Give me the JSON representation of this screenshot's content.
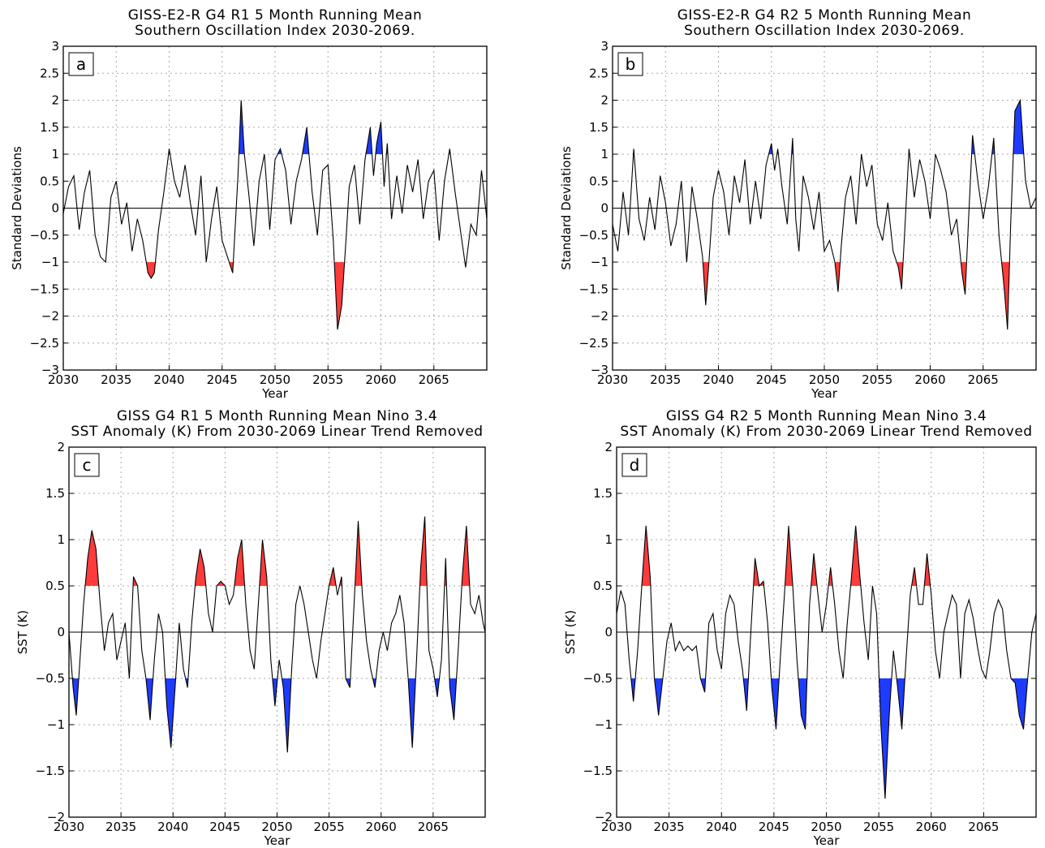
{
  "colors": {
    "positive_fill": "#ff3b3b",
    "negative_fill": "#1e3cff",
    "line": "#000000",
    "grid": "#aaaaaa"
  },
  "chart_data": [
    {
      "type": "area",
      "panel_label": "a",
      "title": [
        "GISS-E2-R G4 R1 5 Month Running Mean",
        "Southern Oscillation Index 2030-2069."
      ],
      "xlabel": "Year",
      "ylabel": "Standard Deviations",
      "xlim": [
        2030,
        2070
      ],
      "ylim": [
        -3,
        3
      ],
      "xticks": [
        2030,
        2035,
        2040,
        2045,
        2050,
        2055,
        2060,
        2065
      ],
      "xtick_labels": [
        "2030",
        "2035",
        "2040",
        "2045",
        "2050",
        "2055",
        "2060",
        "2065"
      ],
      "yticks": [
        -3,
        -2.5,
        -2,
        -1.5,
        -1,
        -0.5,
        0,
        0.5,
        1,
        1.5,
        2,
        2.5,
        3
      ],
      "ytick_labels": [
        "−3",
        "−2.5",
        "−2",
        "−1.5",
        "−1",
        "−0.5",
        "0",
        "0.5",
        "1",
        "1.5",
        "2",
        "2.5",
        "3"
      ],
      "grid": true,
      "shading": {
        "above_threshold": 1.0,
        "above_color": "#1e3cff",
        "below_threshold": -1.0,
        "below_color": "#ff3b3b"
      },
      "series": [
        {
          "x": [
            2030.0,
            2030.5,
            2031.0,
            2031.5,
            2032.0,
            2032.5,
            2033.0,
            2033.5,
            2034.0,
            2034.5,
            2035.0,
            2035.5,
            2036.0,
            2036.5,
            2037.0,
            2037.5,
            2038.0,
            2038.3,
            2038.6,
            2039.0,
            2039.5,
            2040.0,
            2040.5,
            2041.0,
            2041.5,
            2042.0,
            2042.5,
            2043.0,
            2043.5,
            2044.0,
            2044.5,
            2045.0,
            2045.5,
            2046.0,
            2046.5,
            2046.8,
            2047.1,
            2047.5,
            2048.0,
            2048.5,
            2049.0,
            2049.5,
            2050.0,
            2050.5,
            2051.0,
            2051.5,
            2052.0,
            2052.5,
            2053.0,
            2053.5,
            2054.0,
            2054.5,
            2055.0,
            2055.5,
            2055.9,
            2056.3,
            2056.7,
            2057.0,
            2057.5,
            2058.0,
            2058.5,
            2059.0,
            2059.3,
            2059.6,
            2060.0,
            2060.3,
            2060.6,
            2061.0,
            2061.5,
            2062.0,
            2062.5,
            2063.0,
            2063.5,
            2064.0,
            2064.5,
            2065.0,
            2065.5,
            2066.0,
            2066.5,
            2067.0,
            2067.5,
            2068.0,
            2068.5,
            2069.0,
            2069.5,
            2070.0
          ],
          "y": [
            -0.1,
            0.4,
            0.6,
            -0.4,
            0.3,
            0.7,
            -0.5,
            -0.9,
            -1.0,
            0.2,
            0.5,
            -0.3,
            0.1,
            -0.8,
            -0.2,
            -0.6,
            -1.2,
            -1.3,
            -1.2,
            -0.4,
            0.3,
            1.1,
            0.5,
            0.2,
            0.8,
            0.1,
            -0.5,
            0.6,
            -1.0,
            -0.2,
            0.4,
            -0.6,
            -0.9,
            -1.2,
            0.6,
            2.0,
            1.0,
            0.3,
            -0.7,
            0.5,
            1.0,
            -0.4,
            0.9,
            1.1,
            0.7,
            -0.3,
            0.5,
            0.9,
            1.5,
            0.3,
            -0.5,
            0.7,
            0.8,
            -0.6,
            -2.25,
            -1.8,
            -0.6,
            0.4,
            0.8,
            -0.3,
            0.9,
            1.5,
            0.6,
            1.2,
            1.6,
            0.4,
            1.2,
            -0.2,
            0.6,
            -0.1,
            0.8,
            0.3,
            0.9,
            -0.2,
            0.5,
            0.7,
            -0.6,
            0.5,
            1.1,
            0.3,
            -0.4,
            -1.1,
            -0.3,
            -0.5,
            0.7,
            -0.2
          ]
        }
      ]
    },
    {
      "type": "area",
      "panel_label": "b",
      "title": [
        "GISS-E2-R G4 R2 5 Month Running Mean",
        "Southern Oscillation Index 2030-2069."
      ],
      "xlabel": "Year",
      "ylabel": "Standard Deviations",
      "xlim": [
        2030,
        2070
      ],
      "ylim": [
        -3,
        3
      ],
      "xticks": [
        2030,
        2035,
        2040,
        2045,
        2050,
        2055,
        2060,
        2065
      ],
      "xtick_labels": [
        "2030",
        "2035",
        "2040",
        "2045",
        "2050",
        "2055",
        "2060",
        "2065"
      ],
      "yticks": [
        -3,
        -2.5,
        -2,
        -1.5,
        -1,
        -0.5,
        0,
        0.5,
        1,
        1.5,
        2,
        2.5,
        3
      ],
      "ytick_labels": [
        "−3",
        "−2.5",
        "−2",
        "−1.5",
        "−1",
        "−0.5",
        "0",
        "0.5",
        "1",
        "1.5",
        "2",
        "2.5",
        "3"
      ],
      "grid": true,
      "shading": {
        "above_threshold": 1.0,
        "above_color": "#1e3cff",
        "below_threshold": -1.0,
        "below_color": "#ff3b3b"
      },
      "series": [
        {
          "x": [
            2030.0,
            2030.5,
            2031.0,
            2031.5,
            2032.0,
            2032.5,
            2033.0,
            2033.5,
            2034.0,
            2034.5,
            2035.0,
            2035.5,
            2036.0,
            2036.5,
            2037.0,
            2037.5,
            2038.0,
            2038.5,
            2038.8,
            2039.1,
            2039.5,
            2040.0,
            2040.5,
            2041.0,
            2041.5,
            2042.0,
            2042.5,
            2043.0,
            2043.5,
            2044.0,
            2044.5,
            2045.0,
            2045.3,
            2045.6,
            2046.0,
            2046.5,
            2047.0,
            2047.3,
            2047.6,
            2048.0,
            2048.5,
            2049.0,
            2049.5,
            2050.0,
            2050.5,
            2051.0,
            2051.3,
            2051.6,
            2052.0,
            2052.5,
            2053.0,
            2053.5,
            2054.0,
            2054.5,
            2055.0,
            2055.5,
            2056.0,
            2056.5,
            2057.0,
            2057.3,
            2057.6,
            2058.0,
            2058.5,
            2059.0,
            2059.5,
            2060.0,
            2060.5,
            2061.0,
            2061.5,
            2062.0,
            2062.5,
            2063.0,
            2063.3,
            2063.6,
            2064.0,
            2064.5,
            2065.0,
            2065.5,
            2066.0,
            2066.5,
            2067.0,
            2067.3,
            2067.6,
            2068.0,
            2068.5,
            2069.0,
            2069.5,
            2070.0
          ],
          "y": [
            -0.3,
            -0.8,
            0.3,
            -0.5,
            1.1,
            -0.2,
            -0.6,
            0.2,
            -0.4,
            0.6,
            0.1,
            -0.7,
            -0.3,
            0.5,
            -1.0,
            0.4,
            -0.2,
            -0.9,
            -1.8,
            -1.0,
            0.2,
            0.7,
            0.3,
            -0.5,
            0.6,
            0.1,
            0.9,
            -0.3,
            0.5,
            -0.2,
            0.8,
            1.2,
            0.7,
            1.1,
            0.4,
            -0.3,
            1.3,
            -0.2,
            -0.8,
            0.6,
            0.2,
            -0.4,
            0.3,
            -0.8,
            -0.6,
            -1.0,
            -1.55,
            -0.7,
            0.2,
            0.6,
            -0.3,
            1.0,
            0.4,
            0.8,
            -0.3,
            -0.6,
            0.1,
            -0.8,
            -1.1,
            -1.5,
            -0.4,
            1.1,
            0.2,
            0.9,
            0.5,
            -0.2,
            1.0,
            0.7,
            0.3,
            -0.5,
            -0.2,
            -1.2,
            -1.6,
            -0.3,
            1.35,
            0.5,
            -0.2,
            0.4,
            1.3,
            -0.5,
            -1.5,
            -2.25,
            -0.3,
            1.8,
            2.0,
            0.5,
            0.0,
            0.2
          ]
        }
      ]
    },
    {
      "type": "area",
      "panel_label": "c",
      "title": [
        "GISS G4 R1 5 Month Running Mean Nino 3.4",
        "SST Anomaly (K) From 2030-2069 Linear Trend Removed"
      ],
      "xlabel": "Year",
      "ylabel": "SST (K)",
      "xlim": [
        2030,
        2070
      ],
      "ylim": [
        -2,
        2
      ],
      "xticks": [
        2030,
        2035,
        2040,
        2045,
        2050,
        2055,
        2060,
        2065
      ],
      "xtick_labels": [
        "2030",
        "2035",
        "2040",
        "2045",
        "2050",
        "2055",
        "2060",
        "2065"
      ],
      "yticks": [
        -2,
        -1.5,
        -1,
        -0.5,
        0,
        0.5,
        1,
        1.5,
        2
      ],
      "ytick_labels": [
        "−2",
        "−1.5",
        "−1",
        "−0.5",
        "0",
        "0.5",
        "1",
        "1.5",
        "2"
      ],
      "grid": true,
      "shading": {
        "above_threshold": 0.5,
        "above_color": "#ff3b3b",
        "below_threshold": -0.5,
        "below_color": "#1e3cff"
      },
      "series": [
        {
          "x": [
            2030.0,
            2030.4,
            2030.7,
            2031.0,
            2031.4,
            2031.8,
            2032.2,
            2032.6,
            2033.0,
            2033.4,
            2033.8,
            2034.2,
            2034.6,
            2035.0,
            2035.4,
            2035.8,
            2036.2,
            2036.6,
            2037.0,
            2037.4,
            2037.8,
            2038.2,
            2038.6,
            2039.0,
            2039.4,
            2039.8,
            2040.2,
            2040.6,
            2041.0,
            2041.4,
            2041.8,
            2042.2,
            2042.6,
            2043.0,
            2043.4,
            2043.8,
            2044.2,
            2044.6,
            2045.0,
            2045.4,
            2045.8,
            2046.2,
            2046.6,
            2047.0,
            2047.4,
            2047.8,
            2048.2,
            2048.6,
            2049.0,
            2049.4,
            2049.8,
            2050.2,
            2050.6,
            2051.0,
            2051.4,
            2051.8,
            2052.2,
            2052.6,
            2053.0,
            2053.4,
            2053.8,
            2054.2,
            2054.6,
            2055.0,
            2055.4,
            2055.8,
            2056.2,
            2056.6,
            2057.0,
            2057.4,
            2057.8,
            2058.2,
            2058.6,
            2059.0,
            2059.4,
            2059.8,
            2060.2,
            2060.6,
            2061.0,
            2061.4,
            2061.8,
            2062.2,
            2062.6,
            2063.0,
            2063.4,
            2063.8,
            2064.2,
            2064.6,
            2065.0,
            2065.4,
            2065.8,
            2066.2,
            2066.6,
            2067.0,
            2067.4,
            2067.8,
            2068.2,
            2068.6,
            2069.0,
            2069.4,
            2069.8,
            2070.0
          ],
          "y": [
            0.0,
            -0.6,
            -0.9,
            -0.4,
            0.3,
            0.8,
            1.1,
            0.9,
            0.3,
            -0.2,
            0.1,
            0.2,
            -0.3,
            -0.1,
            0.1,
            -0.5,
            0.6,
            0.5,
            -0.2,
            -0.5,
            -0.95,
            -0.3,
            0.2,
            0.0,
            -0.8,
            -1.25,
            -0.6,
            0.1,
            -0.4,
            -0.6,
            0.1,
            0.6,
            0.9,
            0.7,
            0.2,
            0.0,
            0.5,
            0.55,
            0.5,
            0.3,
            0.4,
            0.8,
            1.0,
            0.3,
            -0.2,
            -0.4,
            0.3,
            1.0,
            0.6,
            -0.3,
            -0.8,
            -0.3,
            -0.6,
            -1.3,
            -0.4,
            0.3,
            0.5,
            0.3,
            0.0,
            -0.3,
            -0.5,
            -0.1,
            0.2,
            0.5,
            0.7,
            0.4,
            0.6,
            -0.5,
            -0.6,
            0.3,
            1.2,
            0.4,
            -0.1,
            -0.4,
            -0.6,
            -0.2,
            0.0,
            -0.2,
            0.1,
            0.2,
            0.4,
            0.1,
            -0.5,
            -1.25,
            -0.3,
            0.7,
            1.25,
            -0.2,
            -0.4,
            -0.7,
            -0.3,
            0.8,
            -0.6,
            -0.95,
            -0.2,
            0.6,
            1.15,
            0.3,
            0.2,
            0.4,
            0.1,
            0.0
          ]
        }
      ]
    },
    {
      "type": "area",
      "panel_label": "d",
      "title": [
        "GISS G4 R2 5 Month Running Mean Nino 3.4",
        "SST Anomaly (K) From 2030-2069 Linear Trend Removed"
      ],
      "xlabel": "Year",
      "ylabel": "SST (K)",
      "xlim": [
        2030,
        2070
      ],
      "ylim": [
        -2,
        2
      ],
      "xticks": [
        2030,
        2035,
        2040,
        2045,
        2050,
        2055,
        2060,
        2065
      ],
      "xtick_labels": [
        "2030",
        "2035",
        "2040",
        "2045",
        "2050",
        "2055",
        "2060",
        "2065"
      ],
      "yticks": [
        -2,
        -1.5,
        -1,
        -0.5,
        0,
        0.5,
        1,
        1.5,
        2
      ],
      "ytick_labels": [
        "−2",
        "−1.5",
        "−1",
        "−0.5",
        "0",
        "0.5",
        "1",
        "1.5",
        "2"
      ],
      "grid": true,
      "shading": {
        "above_threshold": 0.5,
        "above_color": "#ff3b3b",
        "below_threshold": -0.5,
        "below_color": "#1e3cff"
      },
      "series": [
        {
          "x": [
            2030.0,
            2030.4,
            2030.8,
            2031.2,
            2031.6,
            2032.0,
            2032.4,
            2032.8,
            2033.2,
            2033.6,
            2034.0,
            2034.4,
            2034.8,
            2035.2,
            2035.6,
            2036.0,
            2036.4,
            2036.8,
            2037.2,
            2037.6,
            2038.0,
            2038.4,
            2038.8,
            2039.2,
            2039.6,
            2040.0,
            2040.4,
            2040.8,
            2041.2,
            2041.6,
            2042.0,
            2042.4,
            2042.8,
            2043.2,
            2043.6,
            2044.0,
            2044.4,
            2044.8,
            2045.2,
            2045.6,
            2046.0,
            2046.4,
            2046.8,
            2047.2,
            2047.6,
            2048.0,
            2048.4,
            2048.8,
            2049.2,
            2049.6,
            2050.0,
            2050.4,
            2050.8,
            2051.2,
            2051.6,
            2052.0,
            2052.4,
            2052.8,
            2053.2,
            2053.6,
            2054.0,
            2054.4,
            2054.8,
            2055.2,
            2055.6,
            2056.0,
            2056.4,
            2056.8,
            2057.2,
            2057.6,
            2058.0,
            2058.4,
            2058.8,
            2059.2,
            2059.6,
            2060.0,
            2060.4,
            2060.8,
            2061.2,
            2061.6,
            2062.0,
            2062.4,
            2062.8,
            2063.2,
            2063.6,
            2064.0,
            2064.4,
            2064.8,
            2065.2,
            2065.6,
            2066.0,
            2066.4,
            2066.8,
            2067.2,
            2067.6,
            2068.0,
            2068.4,
            2068.8,
            2069.2,
            2069.6,
            2070.0
          ],
          "y": [
            0.2,
            0.45,
            0.3,
            -0.3,
            -0.75,
            -0.2,
            0.5,
            1.15,
            0.6,
            -0.5,
            -0.9,
            -0.5,
            -0.1,
            0.1,
            -0.2,
            -0.1,
            -0.2,
            -0.15,
            -0.2,
            -0.15,
            -0.5,
            -0.65,
            0.1,
            0.2,
            -0.2,
            -0.4,
            0.2,
            0.4,
            0.3,
            -0.1,
            -0.4,
            -0.85,
            0.0,
            0.8,
            0.5,
            0.55,
            0.1,
            -0.6,
            -1.05,
            -0.3,
            0.4,
            1.15,
            0.5,
            -0.3,
            -0.9,
            -1.05,
            0.3,
            0.85,
            0.4,
            0.0,
            0.3,
            0.7,
            0.3,
            -0.2,
            -0.5,
            0.1,
            0.6,
            1.15,
            0.6,
            0.1,
            -0.3,
            0.5,
            0.2,
            -1.0,
            -1.8,
            -0.9,
            -0.2,
            -0.6,
            -1.05,
            -0.3,
            0.4,
            0.7,
            0.3,
            0.3,
            0.85,
            0.4,
            -0.2,
            -0.5,
            0.0,
            0.2,
            0.4,
            0.3,
            -0.5,
            0.2,
            0.35,
            0.15,
            -0.15,
            -0.4,
            -0.5,
            -0.2,
            0.2,
            0.35,
            0.25,
            -0.2,
            -0.5,
            -0.55,
            -0.9,
            -1.05,
            -0.5,
            0.0,
            0.2
          ]
        }
      ]
    }
  ]
}
